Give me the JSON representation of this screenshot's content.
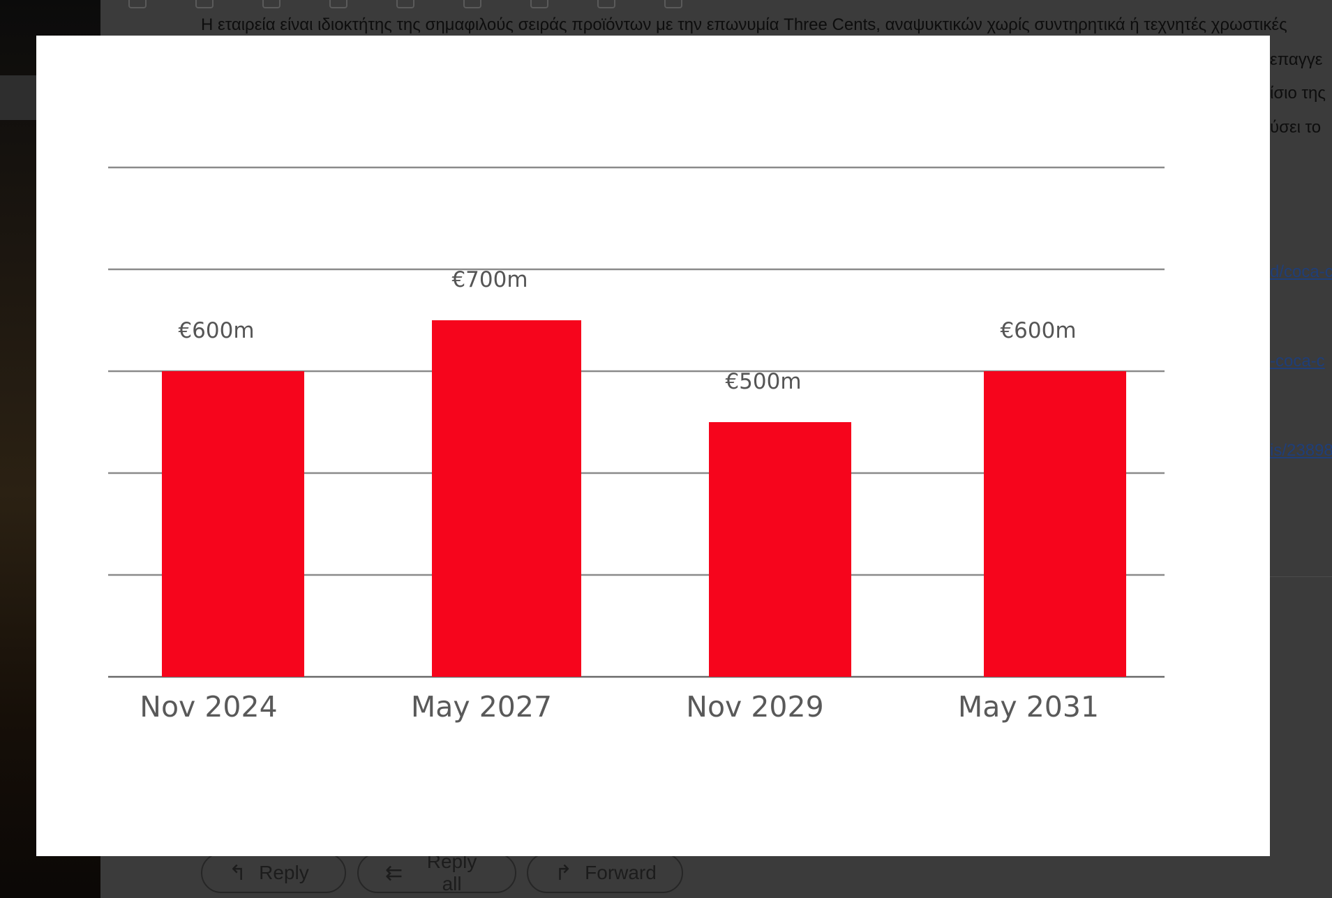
{
  "background_email": {
    "body_line_1": "Η εταιρεία είναι ιδιοκτήτης της σημαφιλούς σειράς προϊόντων με την επωνυμία Three Cents, αναψυκτικών χωρίς συντηρητικά ή τεχνητές χρωστικές",
    "fragment_2": "επαγγε",
    "fragment_3": "ίσιο της",
    "fragment_4": "ύσει το",
    "link_1": "d/coca-c",
    "link_2": "-coca-c",
    "link_3": "is/23898",
    "actions": {
      "reply_label": "Reply",
      "reply_all_label": "Reply all",
      "forward_label": "Forward"
    }
  },
  "chart_data": {
    "type": "bar",
    "categories": [
      "Nov 2024",
      "May 2027",
      "Nov 2029",
      "May 2031"
    ],
    "values": [
      600,
      700,
      500,
      600
    ],
    "value_labels": [
      "€600m",
      "€700m",
      "€500m",
      "€600m"
    ],
    "unit": "€m",
    "ylim": [
      0,
      1000
    ],
    "gridlines": [
      0,
      200,
      400,
      600,
      800,
      1000
    ],
    "grid": true,
    "bar_color": "#f6051c",
    "title": "",
    "xlabel": "",
    "ylabel": ""
  }
}
